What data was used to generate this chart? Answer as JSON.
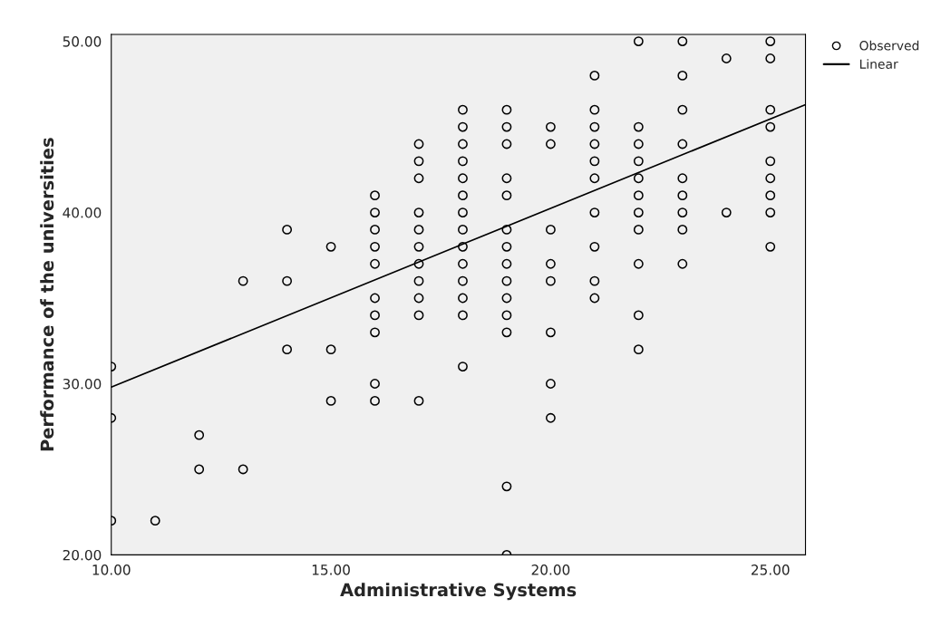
{
  "chart_data": {
    "type": "scatter",
    "xlabel": "Administrative Systems",
    "ylabel": "Performance of the universities",
    "xlim": [
      10,
      25.8
    ],
    "ylim": [
      20,
      50.4
    ],
    "xticks": [
      {
        "value": 10,
        "label": "10.00"
      },
      {
        "value": 15,
        "label": "15.00"
      },
      {
        "value": 20,
        "label": "20.00"
      },
      {
        "value": 25,
        "label": "25.00"
      }
    ],
    "yticks": [
      {
        "value": 20,
        "label": "20.00"
      },
      {
        "value": 30,
        "label": "30.00"
      },
      {
        "value": 40,
        "label": "40.00"
      },
      {
        "value": 50,
        "label": "50.00"
      }
    ],
    "grid": false,
    "legend": "top right",
    "marker": "circle",
    "series": [
      {
        "name": "Observed",
        "color": "#000000",
        "x": [
          10,
          10,
          10,
          11,
          12,
          12,
          13,
          13,
          14,
          14,
          14,
          15,
          15,
          15,
          16,
          16,
          16,
          16,
          16,
          16,
          16,
          16,
          16,
          16,
          17,
          17,
          17,
          17,
          17,
          17,
          17,
          17,
          17,
          17,
          17,
          18,
          18,
          18,
          18,
          18,
          18,
          18,
          18,
          18,
          18,
          18,
          18,
          18,
          18,
          19,
          19,
          19,
          19,
          19,
          19,
          19,
          19,
          19,
          19,
          19,
          19,
          19,
          19,
          20,
          20,
          20,
          20,
          20,
          20,
          20,
          20,
          21,
          21,
          21,
          21,
          21,
          21,
          21,
          21,
          21,
          21,
          22,
          22,
          22,
          22,
          22,
          22,
          22,
          22,
          22,
          22,
          22,
          23,
          23,
          23,
          23,
          23,
          23,
          23,
          23,
          23,
          24,
          24,
          25,
          25,
          25,
          25,
          25,
          25,
          25,
          25,
          25
        ],
        "values": [
          31,
          28,
          22,
          22,
          27,
          25,
          36,
          25,
          39,
          36,
          32,
          38,
          32,
          29,
          41,
          40,
          39,
          38,
          37,
          35,
          34,
          33,
          30,
          29,
          44,
          43,
          42,
          40,
          39,
          38,
          37,
          36,
          35,
          34,
          29,
          46,
          45,
          44,
          43,
          42,
          41,
          40,
          39,
          38,
          37,
          36,
          35,
          34,
          31,
          46,
          45,
          44,
          42,
          41,
          39,
          38,
          37,
          36,
          35,
          34,
          33,
          24,
          20,
          45,
          44,
          39,
          37,
          36,
          33,
          30,
          28,
          48,
          46,
          45,
          44,
          43,
          42,
          40,
          38,
          36,
          35,
          50,
          45,
          44,
          43,
          42,
          41,
          40,
          39,
          37,
          34,
          32,
          50,
          48,
          46,
          44,
          42,
          41,
          40,
          39,
          37,
          49,
          40,
          50,
          49,
          46,
          45,
          43,
          42,
          41,
          40,
          38
        ]
      },
      {
        "name": "Linear",
        "type": "line",
        "color": "#000000",
        "x": [
          10,
          25.8
        ],
        "values": [
          29.8,
          46.3
        ],
        "marker": "none",
        "line_style": "solid"
      }
    ]
  }
}
